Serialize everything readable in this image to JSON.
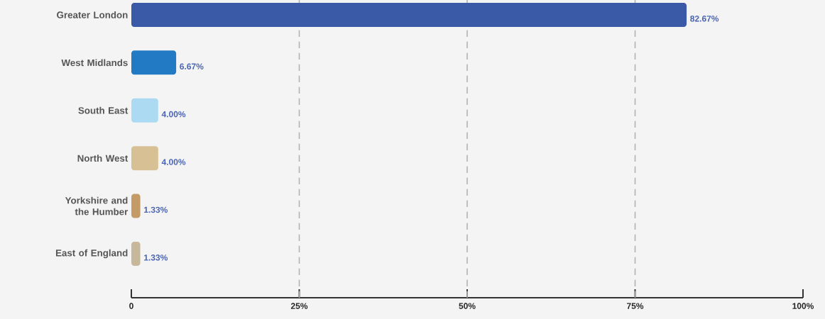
{
  "chart_data": {
    "type": "bar",
    "orientation": "horizontal",
    "categories": [
      "Greater London",
      "West Midlands",
      "South East",
      "North West",
      "Yorkshire and the Humber",
      "East of England"
    ],
    "values": [
      82.67,
      6.67,
      4.0,
      4.0,
      1.33,
      1.33
    ],
    "colors": [
      "#3a5aa8",
      "#2279c4",
      "#acdaf3",
      "#d6c094",
      "#c49a66",
      "#c8b89b"
    ],
    "value_labels": [
      "82.67%",
      "6.67%",
      "4.00%",
      "4.00%",
      "1.33%",
      "1.33%"
    ],
    "xlim": [
      0,
      100
    ],
    "xticks": [
      {
        "value": 0,
        "label": "0"
      },
      {
        "value": 25,
        "label": "25%"
      },
      {
        "value": 50,
        "label": "50%"
      },
      {
        "value": 75,
        "label": "75%"
      },
      {
        "value": 100,
        "label": "100%"
      }
    ],
    "grid": "x"
  }
}
